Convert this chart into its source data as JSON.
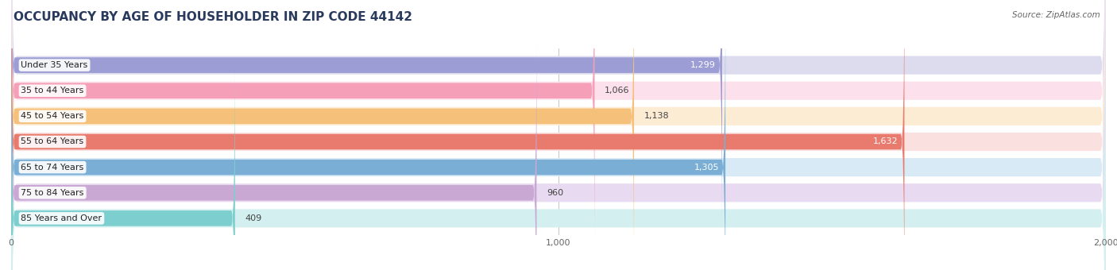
{
  "title": "OCCUPANCY BY AGE OF HOUSEHOLDER IN ZIP CODE 44142",
  "source": "Source: ZipAtlas.com",
  "categories": [
    "Under 35 Years",
    "35 to 44 Years",
    "45 to 54 Years",
    "55 to 64 Years",
    "65 to 74 Years",
    "75 to 84 Years",
    "85 Years and Over"
  ],
  "values": [
    1299,
    1066,
    1138,
    1632,
    1305,
    960,
    409
  ],
  "bar_colors": [
    "#9b9dd4",
    "#f5a0b8",
    "#f5c07a",
    "#e87b6e",
    "#7aaed4",
    "#c9a8d4",
    "#7dcfcf"
  ],
  "bar_bg_colors": [
    "#dcdcee",
    "#fce0ec",
    "#fdecd4",
    "#fae0de",
    "#d8eaf6",
    "#e8daf0",
    "#d4efef"
  ],
  "xlim": [
    0,
    2000
  ],
  "xticks": [
    0,
    1000,
    2000
  ],
  "title_color": "#2a3a5c",
  "title_fontsize": 11,
  "label_fontsize": 8.0,
  "value_fontsize": 8.0,
  "background_color": "#ffffff",
  "value_threshold_inside": 1200,
  "bar_height": 0.72
}
